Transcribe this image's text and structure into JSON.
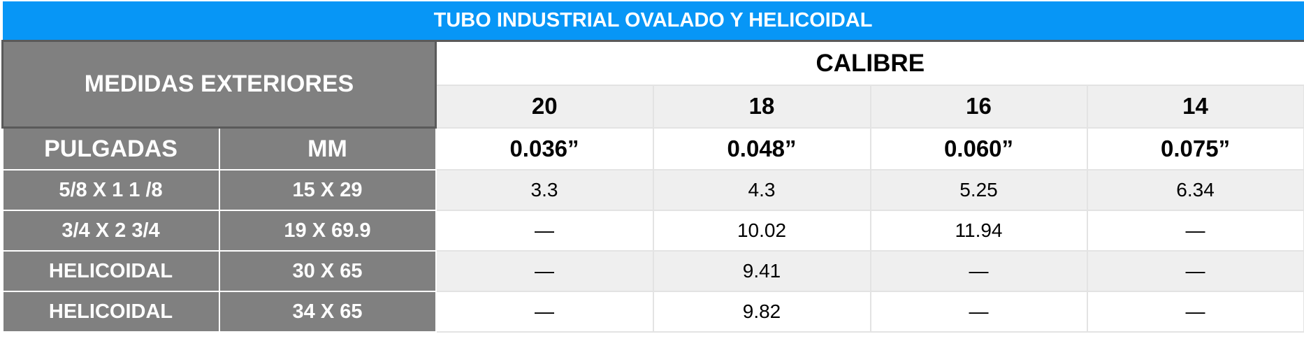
{
  "title": "TUBO INDUSTRIAL OVALADO Y HELICOIDAL",
  "header": {
    "medidas": "MEDIDAS EXTERIORES",
    "calibre": "CALIBRE",
    "pulgadas": "PULGADAS",
    "mm": "MM",
    "gauges": [
      "20",
      "18",
      "16",
      "14"
    ],
    "inches": [
      "0.036”",
      "0.048”",
      "0.060”",
      "0.075”"
    ]
  },
  "rows": [
    {
      "pulgadas": "5/8 X 1 1 /8",
      "mm": "15 X 29",
      "values": [
        "3.3",
        "4.3",
        "5.25",
        "6.34"
      ]
    },
    {
      "pulgadas": "3/4 X 2 3/4",
      "mm": "19 X 69.9",
      "values": [
        "—",
        "10.02",
        "11.94",
        "—"
      ]
    },
    {
      "pulgadas": "HELICOIDAL",
      "mm": "30 X 65",
      "values": [
        "—",
        "9.41",
        "—",
        "—"
      ]
    },
    {
      "pulgadas": "HELICOIDAL",
      "mm": "34 X 65",
      "values": [
        "—",
        "9.82",
        "—",
        "—"
      ]
    }
  ],
  "colors": {
    "title_bg": "#0796f6",
    "header_grey": "#808080",
    "row_light": "#efefef"
  }
}
